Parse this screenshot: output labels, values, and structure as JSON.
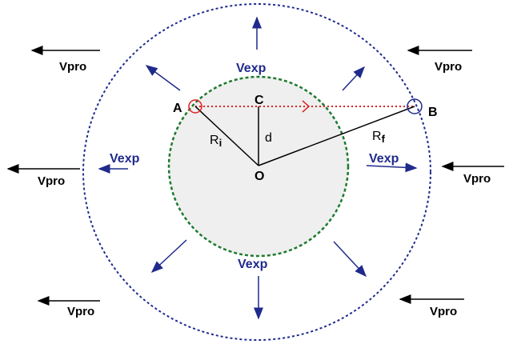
{
  "points": {
    "a": "A",
    "b": "B",
    "c": "C",
    "o": "O"
  },
  "distance": "d",
  "radius_initial": {
    "main": "R",
    "sub": "i"
  },
  "radius_final": {
    "main": "R",
    "sub": "f"
  },
  "expansion_velocity": {
    "main": "V",
    "sub": "exp"
  },
  "proper_velocity": {
    "main": "V",
    "sub": "pro"
  }
}
